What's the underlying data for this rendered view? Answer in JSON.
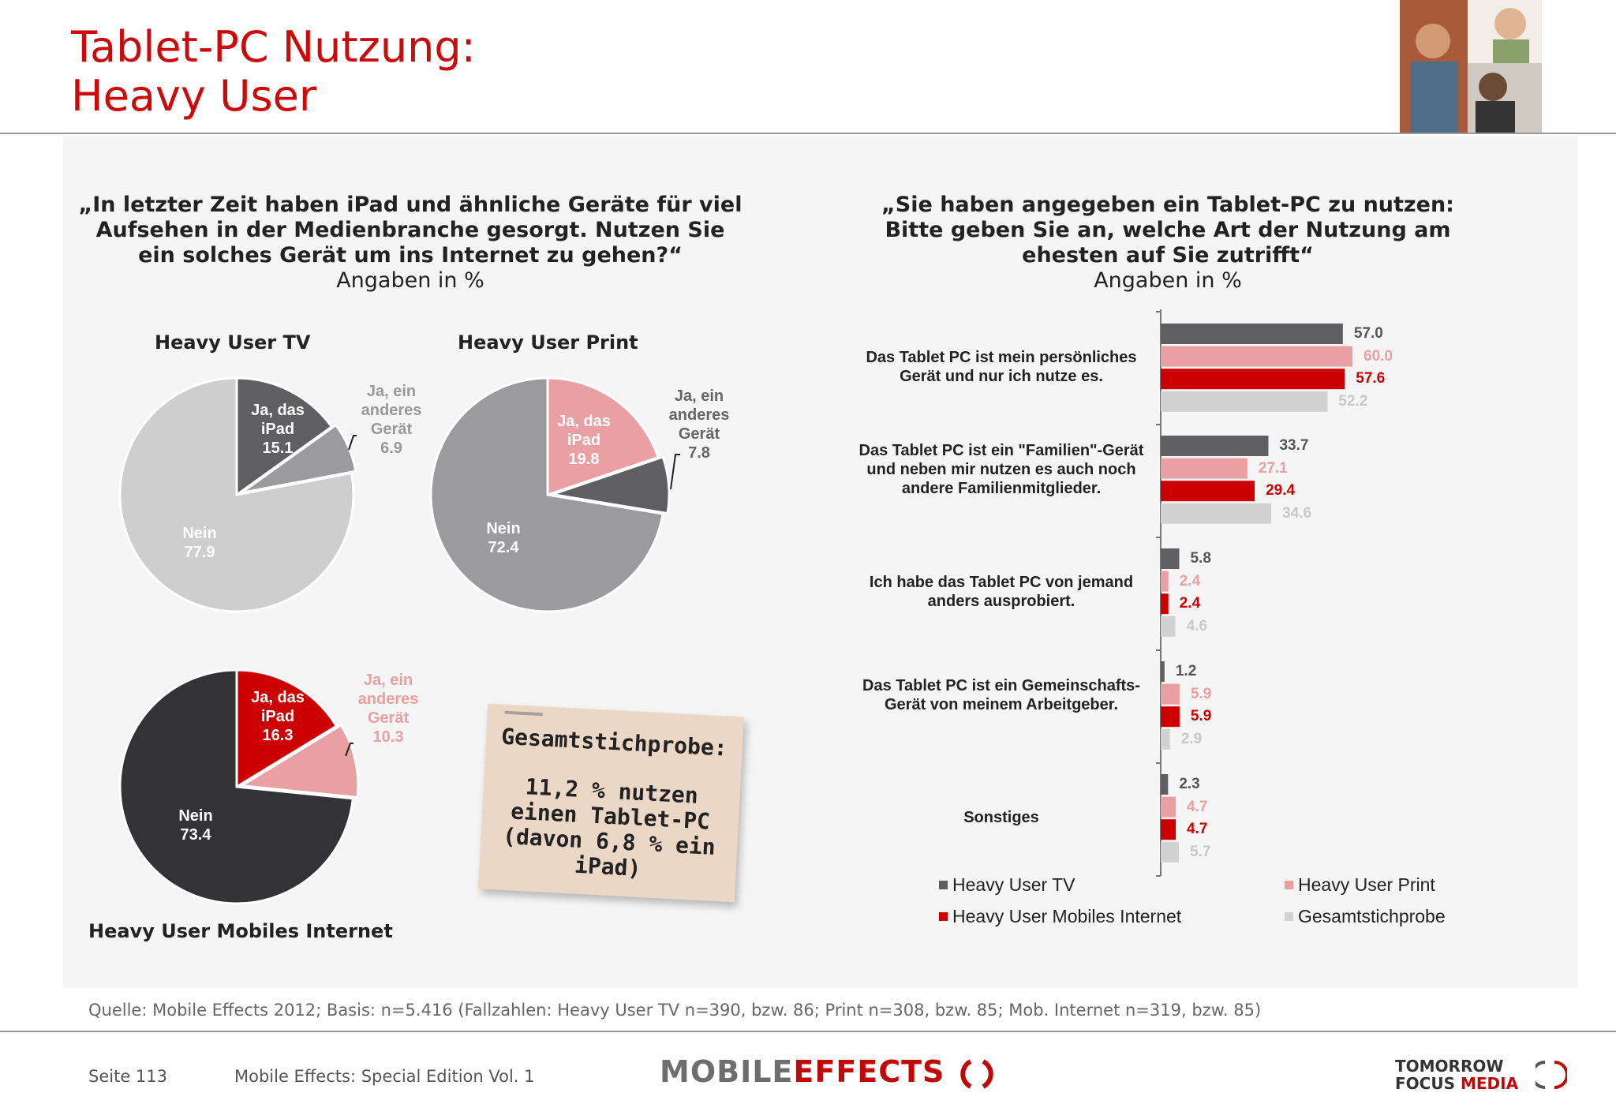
{
  "header": {
    "title_line1": "Tablet-PC Nutzung:",
    "title_line2": "Heavy User"
  },
  "left": {
    "question": "„In letzter Zeit haben iPad und ähnliche Geräte für viel Aufsehen in der Medienbranche gesorgt. Nutzen Sie ein solches Gerät um ins Internet zu gehen?“",
    "subtitle": "Angaben in %"
  },
  "right": {
    "question": "„Sie haben angegeben ein Tablet-PC zu nutzen: Bitte geben Sie an, welche Art der Nutzung am ehesten auf Sie zutrifft“",
    "subtitle": "Angaben in %"
  },
  "note": {
    "heading": "Gesamtstichprobe:",
    "body": "11,2 % nutzen einen Tablet-PC (davon 6,8 % ein iPad)"
  },
  "footer": {
    "source": "Quelle: Mobile Effects 2012; Basis: n=5.416 (Fallzahlen: Heavy User TV n=390, bzw. 86; Print n=308, bzw. 85; Mob. Internet n=319, bzw. 85)",
    "page": "Seite 113",
    "edition": "Mobile Effects: Special Edition Vol. 1",
    "logo_part1": "MOBILE",
    "logo_part2": "EFFECTS",
    "tfm_line1": "TOMORROW",
    "tfm_line2a": "FOCUS",
    "tfm_line2b": "MEDIA"
  },
  "chart_data": [
    {
      "type": "pie",
      "title": "Heavy User TV",
      "slices": [
        {
          "label": "Ja, das iPad",
          "value": 15.1,
          "color": "#5f5e60"
        },
        {
          "label": "Ja, ein anderes Gerät",
          "value": 6.9,
          "color": "#9b9a9c"
        },
        {
          "label": "Nein",
          "value": 77.9,
          "color": "#cfcecf"
        }
      ]
    },
    {
      "type": "pie",
      "title": "Heavy User Print",
      "slices": [
        {
          "label": "Ja, das iPad",
          "value": 19.8,
          "color": "#e8a0a2"
        },
        {
          "label": "Ja, ein anderes Gerät",
          "value": 7.8,
          "color": "#5f5e60"
        },
        {
          "label": "Nein",
          "value": 72.4,
          "color": "#9b9a9c"
        }
      ]
    },
    {
      "type": "pie",
      "title": "Heavy User Mobiles Internet",
      "slices": [
        {
          "label": "Ja, das iPad",
          "value": 16.3,
          "color": "#cc0000"
        },
        {
          "label": "Ja, ein anderes Gerät",
          "value": 10.3,
          "color": "#e8a0a2"
        },
        {
          "label": "Nein",
          "value": 73.4,
          "color": "#333234"
        }
      ]
    },
    {
      "type": "bar",
      "orientation": "horizontal",
      "categories": [
        "Das Tablet PC ist mein persönliches Gerät und nur ich nutze es.",
        "Das Tablet PC ist ein \"Familien\"-Gerät und neben mir nutzen es auch noch andere Familienmitglieder.",
        "Ich habe das Tablet PC von jemand anders ausprobiert.",
        "Das Tablet PC ist ein Gemeinschafts-Gerät von meinem Arbeitgeber.",
        "Sonstiges"
      ],
      "series": [
        {
          "name": "Heavy User TV",
          "color": "#5f5e60",
          "label_color": "#555555",
          "values": [
            57.0,
            33.7,
            5.8,
            1.2,
            2.3
          ]
        },
        {
          "name": "Heavy User Print",
          "color": "#e8a0a2",
          "label_color": "#e8a0a2",
          "values": [
            60.0,
            27.1,
            2.4,
            5.9,
            4.7
          ]
        },
        {
          "name": "Heavy User Mobiles Internet",
          "color": "#cc0000",
          "label_color": "#cc0000",
          "values": [
            57.6,
            29.4,
            2.4,
            5.9,
            4.7
          ]
        },
        {
          "name": "Gesamtstichprobe",
          "color": "#d3d2d3",
          "label_color": "#c9c8c9",
          "values": [
            52.2,
            34.6,
            4.6,
            2.9,
            5.7
          ]
        }
      ],
      "xlim": [
        0,
        70
      ],
      "legend": "bottom"
    }
  ]
}
